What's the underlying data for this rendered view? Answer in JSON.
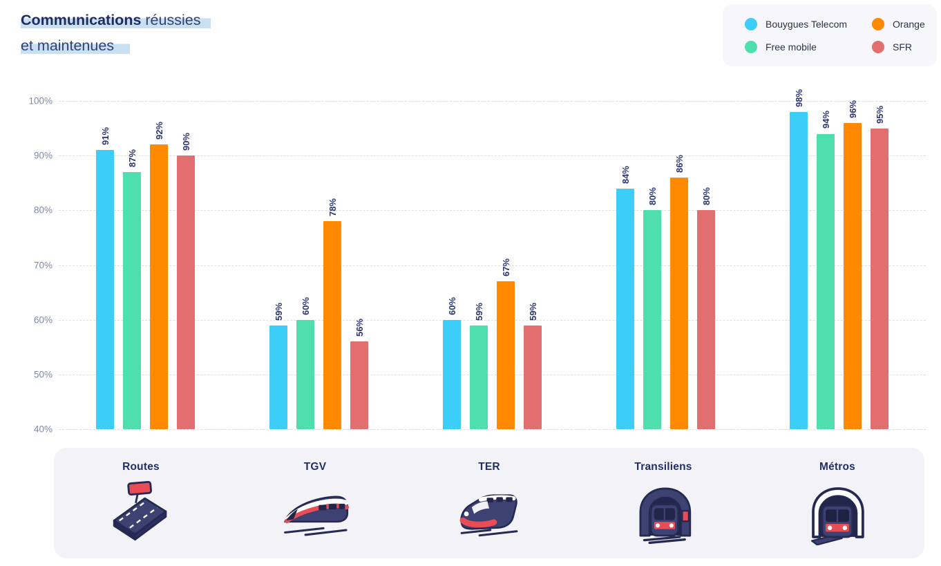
{
  "title": {
    "line1_bold": "Communications",
    "line1_rest": " réussies",
    "line2": "et maintenues"
  },
  "legend": {
    "items": [
      {
        "label": "Bouygues Telecom",
        "color": "#3DCDF9"
      },
      {
        "label": "Free mobile",
        "color": "#4FDFAE"
      },
      {
        "label": "Orange",
        "color": "#FF8A00"
      },
      {
        "label": "SFR",
        "color": "#E26F6F"
      }
    ]
  },
  "chart_data": {
    "type": "bar",
    "title": "Communications réussies et maintenues",
    "categories": [
      "Routes",
      "TGV",
      "TER",
      "Transiliens",
      "Métros"
    ],
    "series": [
      {
        "name": "Bouygues Telecom",
        "color": "#3DCDF9",
        "values": [
          91,
          59,
          60,
          84,
          98
        ]
      },
      {
        "name": "Free mobile",
        "color": "#4FDFAE",
        "values": [
          87,
          60,
          59,
          80,
          94
        ]
      },
      {
        "name": "Orange",
        "color": "#FF8A00",
        "values": [
          92,
          78,
          67,
          86,
          96
        ]
      },
      {
        "name": "SFR",
        "color": "#E26F6F",
        "values": [
          90,
          56,
          59,
          80,
          95
        ]
      }
    ],
    "ylim": [
      40,
      100
    ],
    "yticks": [
      "100%",
      "90%",
      "80%",
      "70%",
      "60%",
      "50%",
      "40%"
    ],
    "value_label_suffix": "%",
    "grid": "horizontal-dashed",
    "legend_position": "top-right",
    "bar_label_rotation": "vertical"
  },
  "category_icons": [
    "road-icon",
    "tgv-train-icon",
    "ter-train-icon",
    "transilien-tunnel-train-icon",
    "metro-tunnel-train-icon"
  ],
  "colors": {
    "title_bold": "#212C63",
    "title_regular": "#35406F",
    "title_highlight": "#C9DFF2",
    "axis_label": "#7F8AA9",
    "gridline": "#DDDDE5",
    "value_label": "#2A3572",
    "category_label": "#232E66",
    "legend_bg": "#F7F7FB",
    "panel_bg": "#F2F2F7",
    "icon_navy": "#3D4272",
    "icon_outline": "#262A52",
    "icon_red": "#E84C55"
  }
}
